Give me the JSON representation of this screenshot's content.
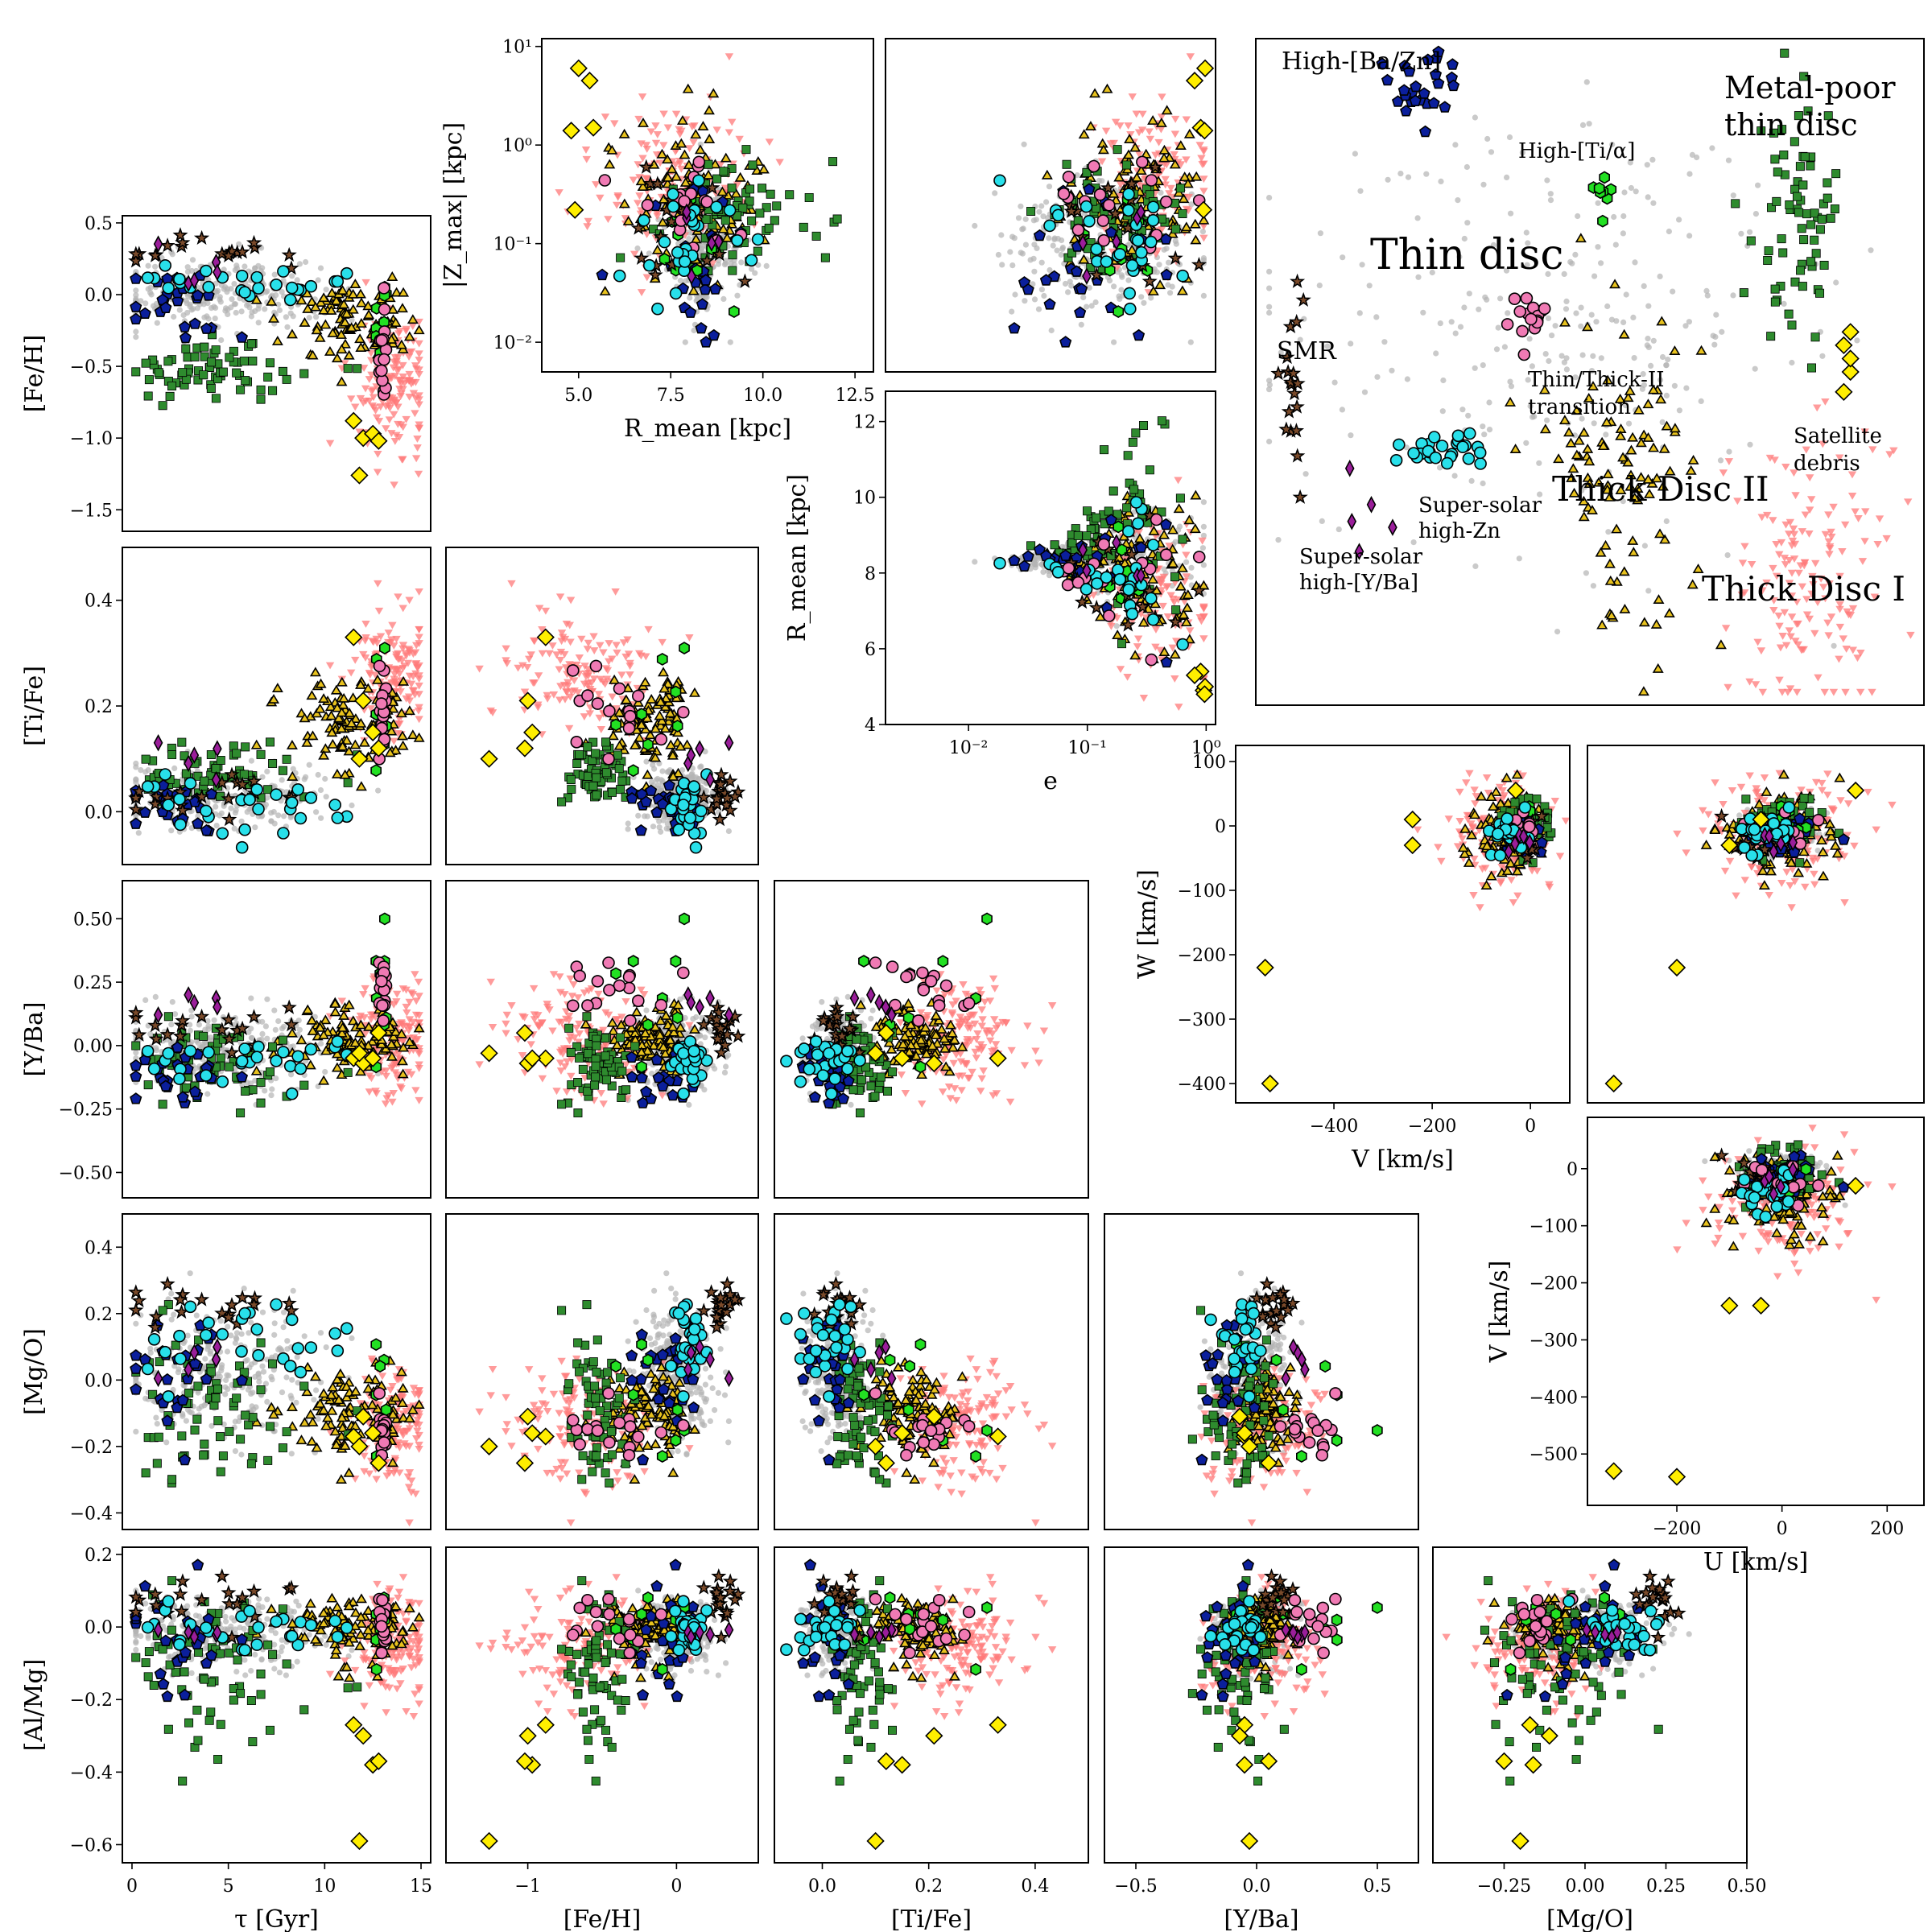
{
  "figure": {
    "panel_letters": []
  },
  "annotations": [
    {
      "key": "hi_ba_zn",
      "text": "High-[Ba/Zn]"
    },
    {
      "key": "mp_thin_1",
      "text": "Metal-poor"
    },
    {
      "key": "mp_thin_2",
      "text": "thin disc"
    },
    {
      "key": "hi_ti",
      "text": "High-[Ti/α]"
    },
    {
      "key": "thin",
      "text": "Thin disc"
    },
    {
      "key": "smr",
      "text": "SMR"
    },
    {
      "key": "trans_1",
      "text": "Thin/Thick-II"
    },
    {
      "key": "trans_2",
      "text": "transition"
    },
    {
      "key": "sat_1",
      "text": "Satellite"
    },
    {
      "key": "sat_2",
      "text": "debris"
    },
    {
      "key": "thick2",
      "text": "Thick Disc II"
    },
    {
      "key": "ss_zn_1",
      "text": "Super-solar"
    },
    {
      "key": "ss_zn_2",
      "text": "high-Zn"
    },
    {
      "key": "ss_yba_1",
      "text": "Super-solar"
    },
    {
      "key": "ss_yba_2",
      "text": "high-[Y/Ba]"
    },
    {
      "key": "thick1",
      "text": "Thick Disc I"
    }
  ],
  "chart_data": [
    {
      "id": "feh_age",
      "type": "scatter",
      "xlabel": "",
      "ylabel": "[Fe/H]",
      "xlim": [
        -0.5,
        15.5
      ],
      "ylim": [
        -1.65,
        0.55
      ],
      "yticks": [
        {
          "v": 0.5,
          "label": "0.5"
        },
        {
          "v": 0.0,
          "label": "0.0"
        },
        {
          "v": -0.5,
          "label": "−0.5"
        },
        {
          "v": -1.0,
          "label": "−1.0"
        },
        {
          "v": -1.5,
          "label": "−1.5"
        }
      ]
    },
    {
      "id": "zmax_rmean",
      "type": "scatter",
      "xlabel": "R_mean [kpc]",
      "ylabel": "|Z_max| [kpc]",
      "xlim": [
        4.0,
        13.0
      ],
      "ylim": [
        0.005,
        12
      ],
      "ylog": true,
      "xticks": [
        {
          "v": 5.0,
          "label": "5.0"
        },
        {
          "v": 7.5,
          "label": "7.5"
        },
        {
          "v": 10.0,
          "label": "10.0"
        },
        {
          "v": 12.5,
          "label": "12.5"
        }
      ],
      "yticks": [
        {
          "v": 10,
          "label": "10¹"
        },
        {
          "v": 1,
          "label": "10⁰"
        },
        {
          "v": 0.1,
          "label": "10⁻¹"
        },
        {
          "v": 0.01,
          "label": "10⁻²"
        }
      ]
    },
    {
      "id": "zmax_e",
      "type": "scatter",
      "xlabel": "",
      "ylabel": "",
      "xlim": [
        0.002,
        1.2
      ],
      "ylim": [
        0.005,
        12
      ],
      "xlog": true,
      "ylog": true
    },
    {
      "id": "rmean_e",
      "type": "scatter",
      "xlabel": "e",
      "ylabel": "R_mean [kpc]",
      "xlim": [
        0.002,
        1.2
      ],
      "ylim": [
        4.0,
        12.8
      ],
      "xlog": true,
      "xticks": [
        {
          "v": 0.01,
          "label": "10⁻²"
        },
        {
          "v": 0.1,
          "label": "10⁻¹"
        },
        {
          "v": 1,
          "label": "10⁰"
        }
      ],
      "yticks": [
        {
          "v": 4,
          "label": "4"
        },
        {
          "v": 6,
          "label": "6"
        },
        {
          "v": 8,
          "label": "8"
        },
        {
          "v": 10,
          "label": "10"
        },
        {
          "v": 12,
          "label": "12"
        }
      ]
    },
    {
      "id": "ti_age",
      "type": "scatter",
      "xlabel": "",
      "ylabel": "[Ti/Fe]",
      "xlim": [
        -0.5,
        15.5
      ],
      "ylim": [
        -0.1,
        0.5
      ],
      "yticks": [
        {
          "v": 0.4,
          "label": "0.4"
        },
        {
          "v": 0.2,
          "label": "0.2"
        },
        {
          "v": 0.0,
          "label": "0.0"
        }
      ]
    },
    {
      "id": "ti_feh",
      "type": "scatter",
      "xlabel": "",
      "ylabel": "",
      "xlim": [
        -1.55,
        0.55
      ],
      "ylim": [
        -0.1,
        0.5
      ]
    },
    {
      "id": "yba_age",
      "type": "scatter",
      "xlabel": "",
      "ylabel": "[Y/Ba]",
      "xlim": [
        -0.5,
        15.5
      ],
      "ylim": [
        -0.6,
        0.65
      ],
      "yticks": [
        {
          "v": 0.5,
          "label": "0.50"
        },
        {
          "v": 0.25,
          "label": "0.25"
        },
        {
          "v": 0.0,
          "label": "0.00"
        },
        {
          "v": -0.25,
          "label": "−0.25"
        },
        {
          "v": -0.5,
          "label": "−0.50"
        }
      ]
    },
    {
      "id": "yba_feh",
      "type": "scatter",
      "xlabel": "",
      "ylabel": "",
      "xlim": [
        -1.55,
        0.55
      ],
      "ylim": [
        -0.6,
        0.65
      ]
    },
    {
      "id": "yba_ti",
      "type": "scatter",
      "xlabel": "",
      "ylabel": "",
      "xlim": [
        -0.09,
        0.5
      ],
      "ylim": [
        -0.6,
        0.65
      ]
    },
    {
      "id": "mgo_age",
      "type": "scatter",
      "xlabel": "",
      "ylabel": "[Mg/O]",
      "xlim": [
        -0.5,
        15.5
      ],
      "ylim": [
        -0.45,
        0.5
      ],
      "yticks": [
        {
          "v": 0.4,
          "label": "0.4"
        },
        {
          "v": 0.2,
          "label": "0.2"
        },
        {
          "v": 0.0,
          "label": "0.0"
        },
        {
          "v": -0.2,
          "label": "−0.2"
        },
        {
          "v": -0.4,
          "label": "−0.4"
        }
      ]
    },
    {
      "id": "mgo_feh",
      "type": "scatter",
      "xlabel": "",
      "ylabel": "",
      "xlim": [
        -1.55,
        0.55
      ],
      "ylim": [
        -0.45,
        0.5
      ]
    },
    {
      "id": "mgo_ti",
      "type": "scatter",
      "xlabel": "",
      "ylabel": "",
      "xlim": [
        -0.09,
        0.5
      ],
      "ylim": [
        -0.45,
        0.5
      ]
    },
    {
      "id": "mgo_yba",
      "type": "scatter",
      "xlabel": "",
      "ylabel": "",
      "xlim": [
        -0.63,
        0.67
      ],
      "ylim": [
        -0.45,
        0.5
      ]
    },
    {
      "id": "almg_age",
      "type": "scatter",
      "xlabel": "τ [Gyr]",
      "ylabel": "[Al/Mg]",
      "xlim": [
        -0.5,
        15.5
      ],
      "ylim": [
        -0.65,
        0.22
      ],
      "xticks": [
        {
          "v": 0,
          "label": "0"
        },
        {
          "v": 5,
          "label": "5"
        },
        {
          "v": 10,
          "label": "10"
        },
        {
          "v": 15,
          "label": "15"
        }
      ],
      "yticks": [
        {
          "v": 0.2,
          "label": "0.2"
        },
        {
          "v": 0.0,
          "label": "0.0"
        },
        {
          "v": -0.2,
          "label": "−0.2"
        },
        {
          "v": -0.4,
          "label": "−0.4"
        },
        {
          "v": -0.6,
          "label": "−0.6"
        }
      ]
    },
    {
      "id": "almg_feh",
      "type": "scatter",
      "xlabel": "[Fe/H]",
      "ylabel": "",
      "xlim": [
        -1.55,
        0.55
      ],
      "ylim": [
        -0.65,
        0.22
      ],
      "xticks": [
        {
          "v": -1,
          "label": "−1"
        },
        {
          "v": 0,
          "label": "0"
        }
      ]
    },
    {
      "id": "almg_ti",
      "type": "scatter",
      "xlabel": "[Ti/Fe]",
      "ylabel": "",
      "xlim": [
        -0.09,
        0.5
      ],
      "ylim": [
        -0.65,
        0.22
      ],
      "xticks": [
        {
          "v": 0.0,
          "label": "0.0"
        },
        {
          "v": 0.2,
          "label": "0.2"
        },
        {
          "v": 0.4,
          "label": "0.4"
        }
      ]
    },
    {
      "id": "almg_yba",
      "type": "scatter",
      "xlabel": "[Y/Ba]",
      "ylabel": "",
      "xlim": [
        -0.63,
        0.67
      ],
      "ylim": [
        -0.65,
        0.22
      ],
      "xticks": [
        {
          "v": -0.5,
          "label": "−0.5"
        },
        {
          "v": 0.0,
          "label": "0.0"
        },
        {
          "v": 0.5,
          "label": "0.5"
        }
      ]
    },
    {
      "id": "almg_mgo",
      "type": "scatter",
      "xlabel": "[Mg/O]",
      "ylabel": "",
      "xlim": [
        -0.47,
        0.5
      ],
      "ylim": [
        -0.65,
        0.22
      ],
      "xticks": [
        {
          "v": -0.25,
          "label": "−0.25"
        },
        {
          "v": 0.0,
          "label": "0.00"
        },
        {
          "v": 0.25,
          "label": "0.25"
        },
        {
          "v": 0.5,
          "label": "0.50"
        }
      ]
    },
    {
      "id": "w_v",
      "type": "scatter",
      "xlabel": "V [km/s]",
      "ylabel": "W [km/s]",
      "xlim": [
        -600,
        80
      ],
      "ylim": [
        -430,
        125
      ],
      "xticks": [
        {
          "v": -400,
          "label": "−400"
        },
        {
          "v": -200,
          "label": "−200"
        },
        {
          "v": 0,
          "label": "0"
        }
      ],
      "yticks": [
        {
          "v": 100,
          "label": "100"
        },
        {
          "v": 0,
          "label": "0"
        },
        {
          "v": -100,
          "label": "−100"
        },
        {
          "v": -200,
          "label": "−200"
        },
        {
          "v": -300,
          "label": "−300"
        },
        {
          "v": -400,
          "label": "−400"
        }
      ]
    },
    {
      "id": "w_u",
      "type": "scatter",
      "xlabel": "",
      "ylabel": "",
      "xlim": [
        -370,
        270
      ],
      "ylim": [
        -430,
        125
      ]
    },
    {
      "id": "v_u",
      "type": "scatter",
      "xlabel": "U [km/s]",
      "ylabel": "V [km/s]",
      "xlim": [
        -370,
        270
      ],
      "ylim": [
        -590,
        90
      ],
      "xticks": [
        {
          "v": -200,
          "label": "−200"
        },
        {
          "v": 0,
          "label": "0"
        },
        {
          "v": 200,
          "label": "200"
        }
      ],
      "yticks": [
        {
          "v": 0,
          "label": "0"
        },
        {
          "v": -100,
          "label": "−100"
        },
        {
          "v": -200,
          "label": "−200"
        },
        {
          "v": -300,
          "label": "−300"
        },
        {
          "v": -400,
          "label": "−400"
        },
        {
          "v": -500,
          "label": "−500"
        }
      ]
    },
    {
      "id": "embedding",
      "type": "scatter",
      "xlabel": "",
      "ylabel": "",
      "xlim": [
        0,
        1
      ],
      "ylim": [
        0,
        1
      ]
    }
  ],
  "groups": [
    {
      "id": "thin",
      "label": "Thin disc",
      "marker": "dot",
      "color": "#b4b4b4"
    },
    {
      "id": "thick1",
      "label": "Thick Disc I",
      "marker": "tri_down",
      "color": "#ff7a7a"
    },
    {
      "id": "thick2",
      "label": "Thick Disc II",
      "marker": "tri_up",
      "color": "#e8c21e"
    },
    {
      "id": "mpthin",
      "label": "Metal-poor thin disc",
      "marker": "square",
      "color": "#2e8b2e"
    },
    {
      "id": "baz",
      "label": "High-[Ba/Zn]",
      "marker": "pentagon",
      "color": "#0b1f9c"
    },
    {
      "id": "hiti",
      "label": "High-[Ti/α]",
      "marker": "hexagon",
      "color": "#22e022"
    },
    {
      "id": "smr",
      "label": "SMR",
      "marker": "star",
      "color": "#7a4a2a"
    },
    {
      "id": "trans",
      "label": "Thin/Thick-II transition",
      "marker": "circle",
      "color": "#f07ab4"
    },
    {
      "id": "sszn",
      "label": "Super-solar high-Zn",
      "marker": "circle",
      "color": "#28e0ea"
    },
    {
      "id": "ssyba",
      "label": "Super-solar high-[Y/Ba]",
      "marker": "diamond_thin",
      "color": "#9a1e9a"
    },
    {
      "id": "sat",
      "label": "Satellite debris",
      "marker": "diamond",
      "color": "#ffee00"
    }
  ]
}
